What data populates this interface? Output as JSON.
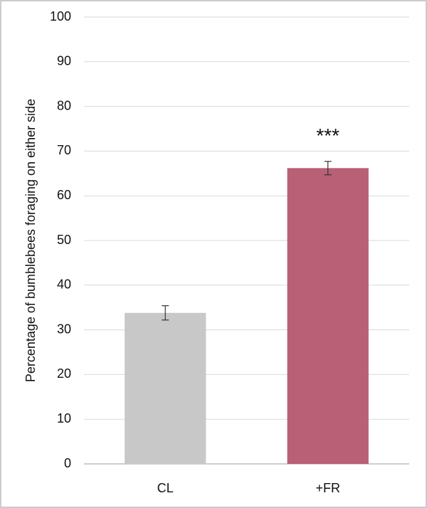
{
  "chart_data": {
    "type": "bar",
    "ylabel": "Percentage of bumblebees foraging on either side",
    "categories": [
      "CL",
      "+FR"
    ],
    "values": [
      33.8,
      66.2
    ],
    "errors": [
      1.6,
      1.5
    ],
    "colors": [
      "#c8c8c8",
      "#b95f76"
    ],
    "annotations": [
      {
        "text": "***",
        "category": "+FR"
      }
    ],
    "ylim": [
      0,
      100
    ],
    "yticks": [
      0,
      10,
      20,
      30,
      40,
      50,
      60,
      70,
      80,
      90,
      100
    ],
    "grid": true
  }
}
